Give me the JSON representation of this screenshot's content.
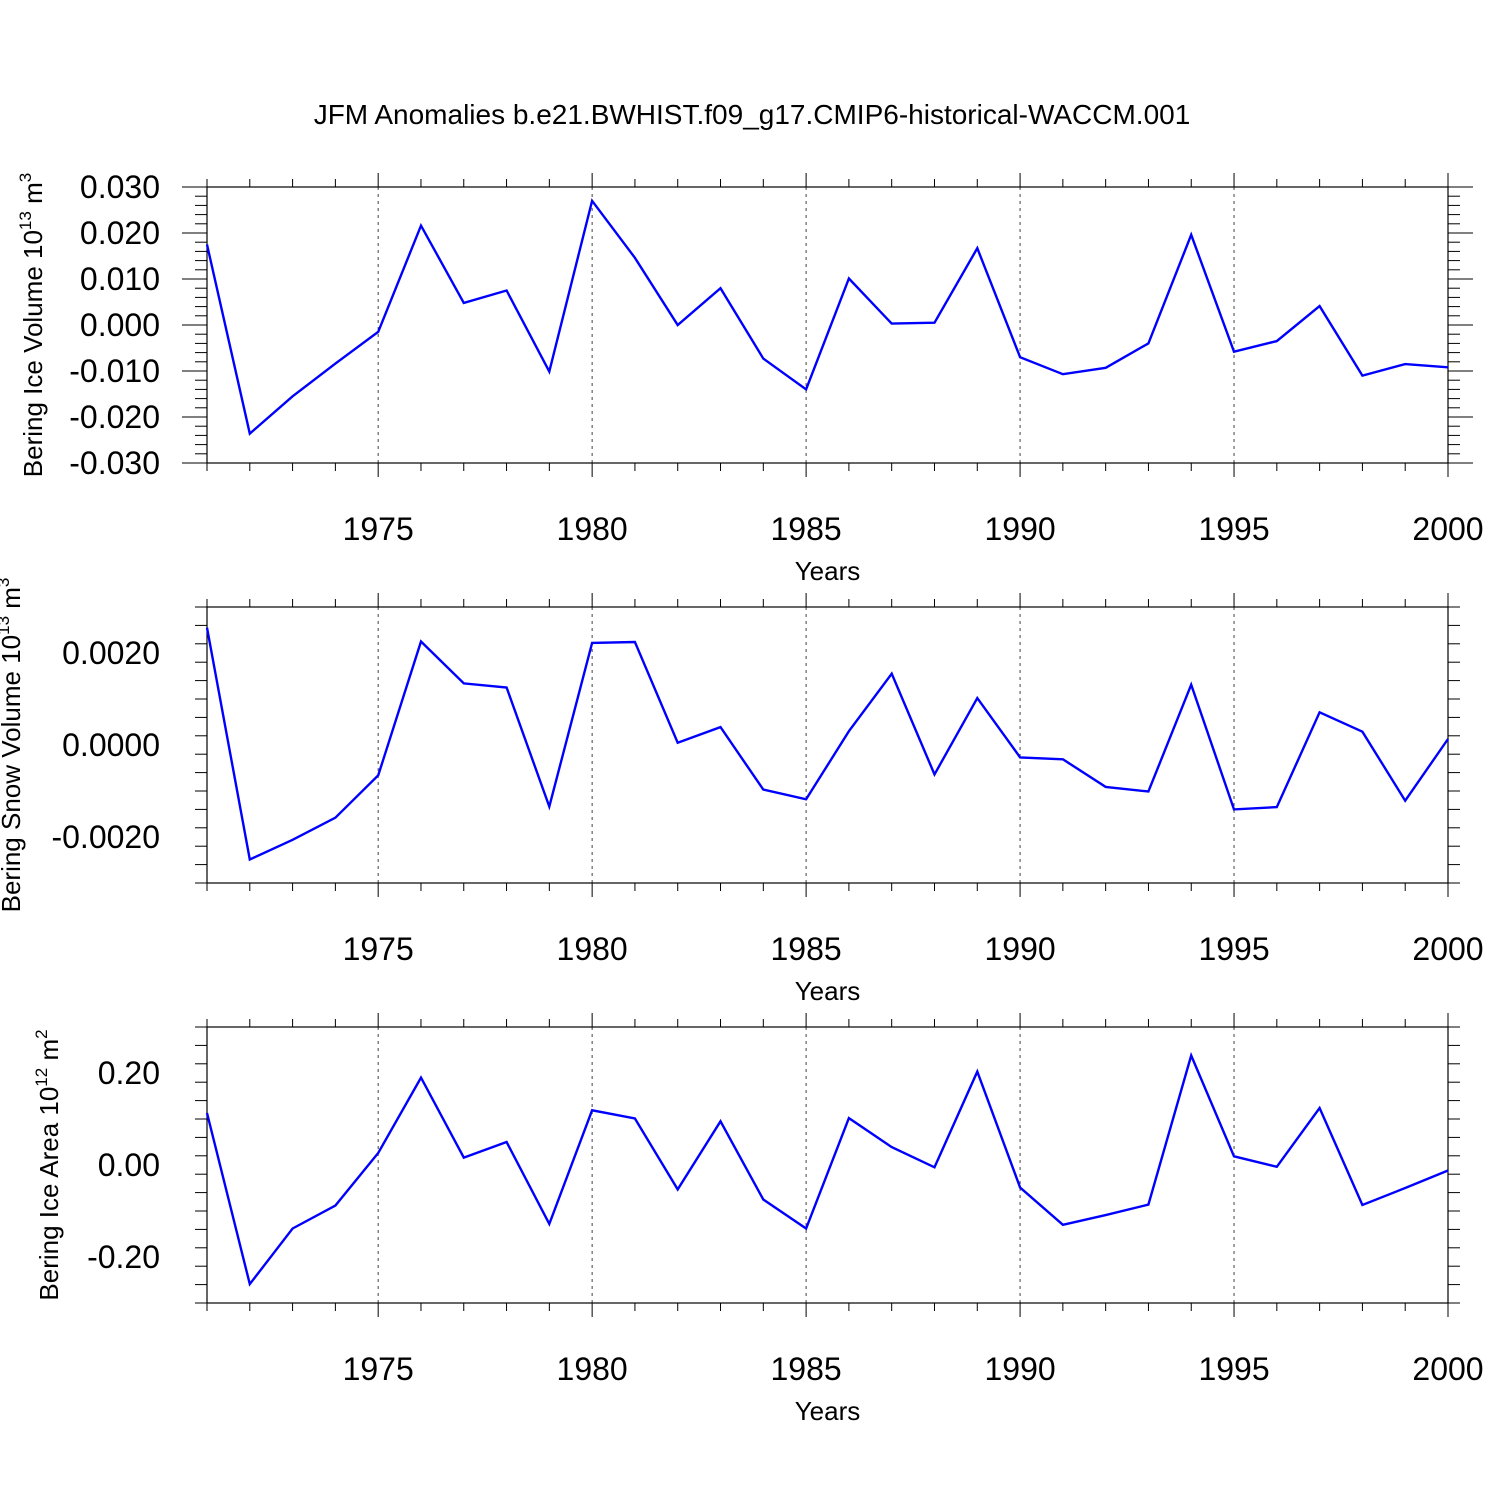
{
  "title": "JFM Anomalies b.e21.BWHIST.f09_g17.CMIP6-historical-WACCM.001",
  "line_color": "#0000ff",
  "chart_data": [
    {
      "type": "line",
      "ylabel": "Bering Ice Volume 10",
      "ylabel_exp": "13",
      "ylabel_unit": "m",
      "ylabel_unit_exp": "3",
      "xlabel": "Years",
      "xlim": [
        1971,
        2000
      ],
      "ylim": [
        -0.03,
        0.03
      ],
      "ytick_values": [
        -0.03,
        -0.02,
        -0.01,
        0,
        0.01,
        0.02,
        0.03
      ],
      "ytick_labels": [
        "-0.030",
        "-0.020",
        "-0.010",
        "0.000",
        "0.010",
        "0.020",
        "0.030"
      ],
      "xtick_values": [
        1975,
        1980,
        1985,
        1990,
        1995,
        2000
      ],
      "xtick_labels": [
        "1975",
        "1980",
        "1985",
        "1990",
        "1995",
        "2000"
      ],
      "grid": "vertical dashed at major x ticks",
      "x": [
        1971,
        1972,
        1973,
        1974,
        1975,
        1976,
        1977,
        1978,
        1979,
        1980,
        1981,
        1982,
        1983,
        1984,
        1985,
        1986,
        1987,
        1988,
        1989,
        1990,
        1991,
        1992,
        1993,
        1994,
        1995,
        1996,
        1997,
        1998,
        1999,
        2000
      ],
      "y": [
        0.0175,
        -0.0236,
        -0.0155,
        -0.0084,
        -0.0015,
        0.0216,
        0.0048,
        0.0075,
        -0.0101,
        0.027,
        0.0146,
        0.0,
        0.008,
        -0.0073,
        -0.014,
        0.0101,
        0.0003,
        0.0005,
        0.0167,
        -0.007,
        -0.0107,
        -0.0093,
        -0.004,
        0.0196,
        -0.0058,
        -0.0035,
        0.0041,
        -0.011,
        -0.0085,
        -0.0092
      ]
    },
    {
      "type": "line",
      "ylabel": "Bering Snow Volume 10",
      "ylabel_exp": "13",
      "ylabel_unit": "m",
      "ylabel_unit_exp": "3",
      "xlabel": "Years",
      "xlim": [
        1971,
        2000
      ],
      "ylim": [
        -0.003,
        0.003
      ],
      "ytick_values": [
        -0.002,
        0,
        0.002
      ],
      "ytick_labels": [
        "-0.0020",
        "0.0000",
        "0.0020"
      ],
      "xtick_values": [
        1975,
        1980,
        1985,
        1990,
        1995,
        2000
      ],
      "xtick_labels": [
        "1975",
        "1980",
        "1985",
        "1990",
        "1995",
        "2000"
      ],
      "grid": "vertical dashed at major x ticks",
      "x": [
        1971,
        1972,
        1973,
        1974,
        1975,
        1976,
        1977,
        1978,
        1979,
        1980,
        1981,
        1982,
        1983,
        1984,
        1985,
        1986,
        1987,
        1988,
        1989,
        1990,
        1991,
        1992,
        1993,
        1994,
        1995,
        1996,
        1997,
        1998,
        1999,
        2000
      ],
      "y": [
        0.00255,
        -0.00249,
        -0.00206,
        -0.00158,
        -0.00066,
        0.00225,
        0.00134,
        0.00125,
        -0.00134,
        0.00222,
        0.00224,
        5e-05,
        0.00039,
        -0.00097,
        -0.00118,
        0.0003,
        0.00155,
        -0.00064,
        0.00102,
        -0.00027,
        -0.00031,
        -0.00091,
        -0.00101,
        0.00131,
        -0.0014,
        -0.00135,
        0.00071,
        0.00029,
        -0.00121,
        0.00013
      ]
    },
    {
      "type": "line",
      "ylabel": "Bering Ice Area 10",
      "ylabel_exp": "12",
      "ylabel_unit": "m",
      "ylabel_unit_exp": "2",
      "xlabel": "Years",
      "xlim": [
        1971,
        2000
      ],
      "ylim": [
        -0.3,
        0.3
      ],
      "ytick_values": [
        -0.2,
        0,
        0.2
      ],
      "ytick_labels": [
        "-0.20",
        "0.00",
        "0.20"
      ],
      "xtick_values": [
        1975,
        1980,
        1985,
        1990,
        1995,
        2000
      ],
      "xtick_labels": [
        "1975",
        "1980",
        "1985",
        "1990",
        "1995",
        "2000"
      ],
      "grid": "vertical dashed at major x ticks",
      "x": [
        1971,
        1972,
        1973,
        1974,
        1975,
        1976,
        1977,
        1978,
        1979,
        1980,
        1981,
        1982,
        1983,
        1984,
        1985,
        1986,
        1987,
        1988,
        1989,
        1990,
        1991,
        1992,
        1993,
        1994,
        1995,
        1996,
        1997,
        1998,
        1999,
        2000
      ],
      "y": [
        0.113,
        -0.259,
        -0.138,
        -0.088,
        0.026,
        0.19,
        0.016,
        0.05,
        -0.128,
        0.119,
        0.101,
        -0.053,
        0.095,
        -0.075,
        -0.138,
        0.102,
        0.039,
        -0.005,
        0.203,
        -0.049,
        -0.13,
        -0.109,
        -0.086,
        0.238,
        0.019,
        -0.004,
        0.124,
        -0.087,
        -0.05,
        -0.012
      ]
    }
  ]
}
